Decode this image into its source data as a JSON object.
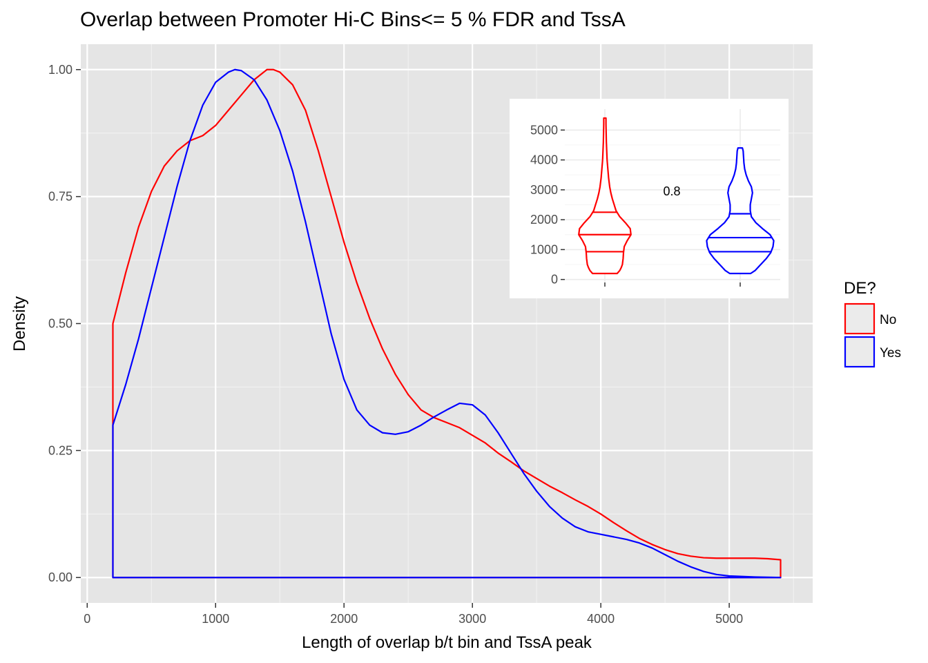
{
  "chart_data": [
    {
      "type": "line",
      "subtype": "density",
      "title": "Overlap between Promoter Hi-C Bins<= 5 % FDR and TssA",
      "xlabel": "Length of overlap b/t bin and TssA peak",
      "ylabel": "Density",
      "xlim": [
        -50,
        5650
      ],
      "ylim": [
        -0.05,
        1.05
      ],
      "x_ticks": [
        0,
        1000,
        2000,
        3000,
        4000,
        5000
      ],
      "x_tick_labels": [
        "0",
        "1000",
        "2000",
        "3000",
        "4000",
        "5000"
      ],
      "y_ticks": [
        0,
        0.25,
        0.5,
        0.75,
        1.0
      ],
      "y_tick_labels": [
        "0.00",
        "0.25",
        "0.50",
        "0.75",
        "1.00"
      ],
      "grid": true,
      "legend": {
        "title": "DE?",
        "placement": "right"
      },
      "series": [
        {
          "name": "No",
          "color": "#ff0000",
          "points": [
            [
              200,
              0.5
            ],
            [
              300,
              0.6
            ],
            [
              400,
              0.69
            ],
            [
              500,
              0.76
            ],
            [
              600,
              0.81
            ],
            [
              700,
              0.84
            ],
            [
              800,
              0.86
            ],
            [
              900,
              0.87
            ],
            [
              1000,
              0.89
            ],
            [
              1100,
              0.92
            ],
            [
              1200,
              0.95
            ],
            [
              1300,
              0.98
            ],
            [
              1400,
              1.0
            ],
            [
              1450,
              1.0
            ],
            [
              1500,
              0.995
            ],
            [
              1600,
              0.97
            ],
            [
              1700,
              0.92
            ],
            [
              1800,
              0.84
            ],
            [
              1900,
              0.75
            ],
            [
              2000,
              0.66
            ],
            [
              2100,
              0.58
            ],
            [
              2200,
              0.51
            ],
            [
              2300,
              0.45
            ],
            [
              2400,
              0.4
            ],
            [
              2500,
              0.36
            ],
            [
              2600,
              0.33
            ],
            [
              2700,
              0.315
            ],
            [
              2800,
              0.305
            ],
            [
              2900,
              0.295
            ],
            [
              3000,
              0.28
            ],
            [
              3100,
              0.265
            ],
            [
              3200,
              0.245
            ],
            [
              3300,
              0.228
            ],
            [
              3400,
              0.21
            ],
            [
              3500,
              0.195
            ],
            [
              3600,
              0.18
            ],
            [
              3700,
              0.167
            ],
            [
              3800,
              0.153
            ],
            [
              3900,
              0.14
            ],
            [
              4000,
              0.125
            ],
            [
              4100,
              0.108
            ],
            [
              4200,
              0.092
            ],
            [
              4300,
              0.077
            ],
            [
              4400,
              0.065
            ],
            [
              4500,
              0.055
            ],
            [
              4600,
              0.047
            ],
            [
              4700,
              0.042
            ],
            [
              4800,
              0.039
            ],
            [
              4900,
              0.038
            ],
            [
              5000,
              0.038
            ],
            [
              5100,
              0.038
            ],
            [
              5200,
              0.038
            ],
            [
              5300,
              0.037
            ],
            [
              5400,
              0.035
            ]
          ]
        },
        {
          "name": "Yes",
          "color": "#0000ff",
          "points": [
            [
              200,
              0.3
            ],
            [
              300,
              0.38
            ],
            [
              400,
              0.47
            ],
            [
              500,
              0.57
            ],
            [
              600,
              0.67
            ],
            [
              700,
              0.77
            ],
            [
              800,
              0.86
            ],
            [
              900,
              0.93
            ],
            [
              1000,
              0.975
            ],
            [
              1100,
              0.995
            ],
            [
              1150,
              1.0
            ],
            [
              1200,
              0.998
            ],
            [
              1300,
              0.98
            ],
            [
              1400,
              0.94
            ],
            [
              1500,
              0.88
            ],
            [
              1600,
              0.8
            ],
            [
              1700,
              0.7
            ],
            [
              1800,
              0.59
            ],
            [
              1900,
              0.48
            ],
            [
              2000,
              0.39
            ],
            [
              2100,
              0.33
            ],
            [
              2200,
              0.3
            ],
            [
              2300,
              0.285
            ],
            [
              2400,
              0.282
            ],
            [
              2500,
              0.287
            ],
            [
              2600,
              0.3
            ],
            [
              2700,
              0.316
            ],
            [
              2800,
              0.33
            ],
            [
              2900,
              0.343
            ],
            [
              3000,
              0.34
            ],
            [
              3100,
              0.32
            ],
            [
              3200,
              0.285
            ],
            [
              3300,
              0.245
            ],
            [
              3400,
              0.205
            ],
            [
              3500,
              0.17
            ],
            [
              3600,
              0.14
            ],
            [
              3700,
              0.117
            ],
            [
              3800,
              0.1
            ],
            [
              3900,
              0.09
            ],
            [
              4000,
              0.085
            ],
            [
              4100,
              0.08
            ],
            [
              4200,
              0.075
            ],
            [
              4300,
              0.068
            ],
            [
              4400,
              0.058
            ],
            [
              4500,
              0.045
            ],
            [
              4600,
              0.032
            ],
            [
              4700,
              0.021
            ],
            [
              4800,
              0.012
            ],
            [
              4900,
              0.006
            ],
            [
              5000,
              0.003
            ],
            [
              5200,
              0.001
            ],
            [
              5400,
              0.0
            ]
          ]
        }
      ]
    },
    {
      "type": "violin",
      "categories": [
        "No",
        "Yes"
      ],
      "ylim": [
        -100,
        5700
      ],
      "y_ticks": [
        0,
        1000,
        2000,
        3000,
        4000,
        5000
      ],
      "y_tick_labels": [
        "0",
        "1000",
        "2000",
        "3000",
        "4000",
        "5000"
      ],
      "annotation": "0.8",
      "grid": true,
      "series": [
        {
          "name": "No",
          "color": "#ff0000",
          "quantiles": [
            930,
            1500,
            2250
          ],
          "profile": [
            [
              200,
              0.33
            ],
            [
              300,
              0.4
            ],
            [
              400,
              0.44
            ],
            [
              500,
              0.47
            ],
            [
              700,
              0.49
            ],
            [
              900,
              0.5
            ],
            [
              1100,
              0.52
            ],
            [
              1300,
              0.6
            ],
            [
              1500,
              0.7
            ],
            [
              1700,
              0.68
            ],
            [
              1900,
              0.55
            ],
            [
              2100,
              0.4
            ],
            [
              2300,
              0.3
            ],
            [
              2500,
              0.25
            ],
            [
              2700,
              0.2
            ],
            [
              2900,
              0.16
            ],
            [
              3100,
              0.13
            ],
            [
              3400,
              0.1
            ],
            [
              3700,
              0.08
            ],
            [
              4000,
              0.06
            ],
            [
              4300,
              0.05
            ],
            [
              4600,
              0.04
            ],
            [
              4900,
              0.035
            ],
            [
              5200,
              0.03
            ],
            [
              5400,
              0.03
            ]
          ]
        },
        {
          "name": "Yes",
          "color": "#0000ff",
          "quantiles": [
            930,
            1400,
            2200
          ],
          "profile": [
            [
              200,
              0.28
            ],
            [
              300,
              0.4
            ],
            [
              500,
              0.55
            ],
            [
              700,
              0.7
            ],
            [
              900,
              0.82
            ],
            [
              1100,
              0.88
            ],
            [
              1300,
              0.9
            ],
            [
              1500,
              0.8
            ],
            [
              1700,
              0.6
            ],
            [
              1900,
              0.42
            ],
            [
              2100,
              0.3
            ],
            [
              2300,
              0.27
            ],
            [
              2500,
              0.27
            ],
            [
              2700,
              0.3
            ],
            [
              2900,
              0.33
            ],
            [
              3100,
              0.3
            ],
            [
              3300,
              0.22
            ],
            [
              3500,
              0.16
            ],
            [
              3700,
              0.12
            ],
            [
              3900,
              0.1
            ],
            [
              4100,
              0.09
            ],
            [
              4300,
              0.08
            ],
            [
              4400,
              0.06
            ]
          ]
        }
      ]
    }
  ]
}
